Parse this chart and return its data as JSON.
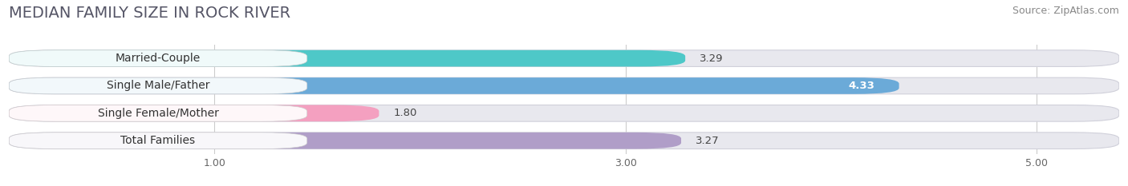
{
  "title": "MEDIAN FAMILY SIZE IN ROCK RIVER",
  "source": "Source: ZipAtlas.com",
  "categories": [
    "Married-Couple",
    "Single Male/Father",
    "Single Female/Mother",
    "Total Families"
  ],
  "values": [
    3.29,
    4.33,
    1.8,
    3.27
  ],
  "bar_colors": [
    "#4ec8c8",
    "#6baad8",
    "#f4a0c0",
    "#b09ec8"
  ],
  "label_colors": [
    "#444444",
    "#ffffff",
    "#444444",
    "#444444"
  ],
  "value_colors": [
    "#444444",
    "#ffffff",
    "#444444",
    "#444444"
  ],
  "xlim_min": 0.0,
  "xlim_max": 5.4,
  "xaxis_min": 0.5,
  "xticks": [
    1.0,
    3.0,
    5.0
  ],
  "background_color": "#ffffff",
  "bar_bg_color": "#e8e8ee",
  "bar_border_color": "#d0d0da",
  "title_fontsize": 14,
  "label_fontsize": 10,
  "value_fontsize": 9.5,
  "source_fontsize": 9
}
